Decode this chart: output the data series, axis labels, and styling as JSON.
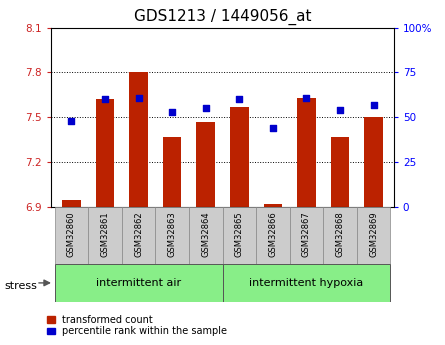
{
  "title": "GDS1213 / 1449056_at",
  "samples": [
    "GSM32860",
    "GSM32861",
    "GSM32862",
    "GSM32863",
    "GSM32864",
    "GSM32865",
    "GSM32866",
    "GSM32867",
    "GSM32868",
    "GSM32869"
  ],
  "transformed_count": [
    6.95,
    7.62,
    7.8,
    7.37,
    7.47,
    7.57,
    6.92,
    7.63,
    7.37,
    7.5
  ],
  "percentile_rank": [
    48,
    60,
    61,
    53,
    55,
    60,
    44,
    61,
    54,
    57
  ],
  "ylim_left": [
    6.9,
    8.1
  ],
  "ylim_right": [
    0,
    100
  ],
  "yticks_left": [
    6.9,
    7.2,
    7.5,
    7.8,
    8.1
  ],
  "ytick_labels_left": [
    "6.9",
    "7.2",
    "7.5",
    "7.8",
    "8.1"
  ],
  "yticks_right": [
    0,
    25,
    50,
    75,
    100
  ],
  "ytick_labels_right": [
    "0",
    "25",
    "50",
    "75",
    "100%"
  ],
  "bar_color": "#bb2200",
  "marker_color": "#0000cc",
  "bar_width": 0.55,
  "baseline": 6.9,
  "group1_label": "intermittent air",
  "group2_label": "intermittent hypoxia",
  "group1_indices": [
    0,
    1,
    2,
    3,
    4
  ],
  "group2_indices": [
    5,
    6,
    7,
    8,
    9
  ],
  "stress_label": "stress",
  "legend1": "transformed count",
  "legend2": "percentile rank within the sample",
  "group_bg_color": "#88ee88",
  "sample_bg_color": "#cccccc",
  "title_fontsize": 11,
  "tick_fontsize": 7.5
}
